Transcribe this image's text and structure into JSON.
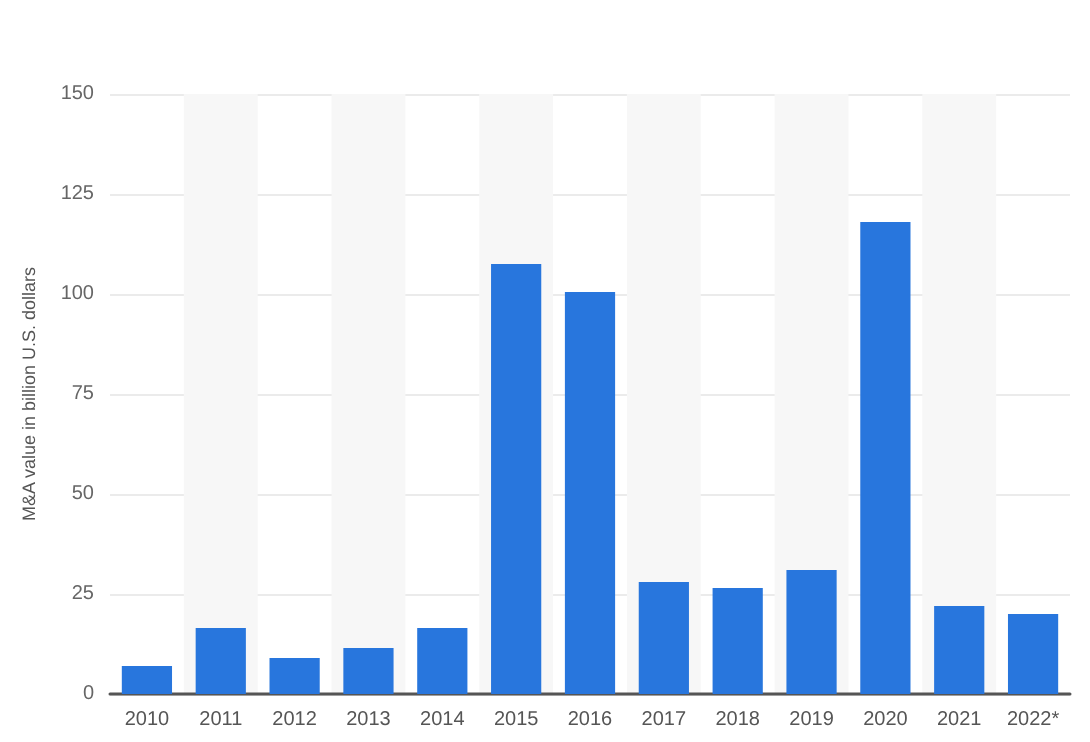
{
  "chart_data": {
    "type": "bar",
    "ylabel": "M&A value in billion U.S. dollars",
    "categories": [
      "2010",
      "2011",
      "2012",
      "2013",
      "2014",
      "2015",
      "2016",
      "2017",
      "2018",
      "2019",
      "2020",
      "2021",
      "2022*"
    ],
    "values": [
      7,
      16.5,
      9,
      11.5,
      16.5,
      107.5,
      100.5,
      28,
      26.5,
      31,
      118,
      22,
      20
    ],
    "color": "#2876dd",
    "ylim": [
      0,
      150
    ],
    "yticks": [
      0,
      25,
      50,
      75,
      100,
      125,
      150
    ],
    "grid": "y"
  }
}
